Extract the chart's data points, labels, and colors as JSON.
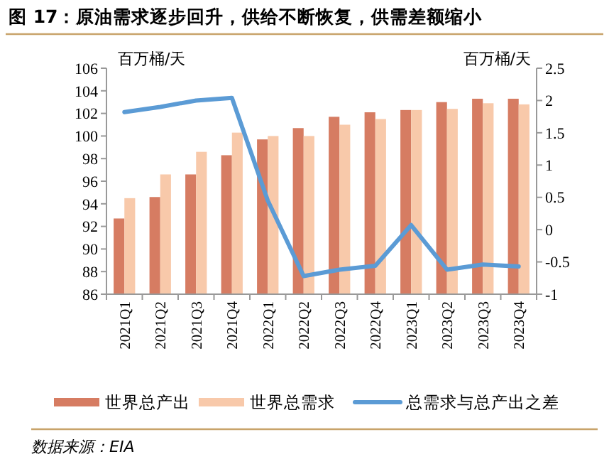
{
  "chart_data": {
    "type": "bar",
    "title": "图 17：原油需求逐步回升，供给不断恢复，供需差额缩小",
    "ylabel": "百万桶/天",
    "y2label": "百万桶/天",
    "categories": [
      "2021Q1",
      "2021Q2",
      "2021Q3",
      "2021Q4",
      "2022Q1",
      "2022Q2",
      "2022Q3",
      "2022Q4",
      "2023Q1",
      "2023Q2",
      "2023Q3",
      "2023Q4"
    ],
    "series": [
      {
        "name": "世界总产出",
        "color": "#d67c62",
        "values": [
          92.7,
          94.6,
          96.6,
          98.3,
          99.7,
          100.7,
          101.7,
          102.1,
          102.3,
          103.0,
          103.3,
          103.3
        ]
      },
      {
        "name": "世界总需求",
        "color": "#f8c9aa",
        "values": [
          94.5,
          96.6,
          98.6,
          100.3,
          100.0,
          100.0,
          101.0,
          101.5,
          102.3,
          102.4,
          102.9,
          102.8
        ]
      },
      {
        "name": "总需求与总产出之差",
        "type": "line",
        "axis": "y2",
        "color": "#5b9bd5",
        "values": [
          1.82,
          1.9,
          2.0,
          2.04,
          0.45,
          -0.72,
          -0.62,
          -0.56,
          0.07,
          -0.62,
          -0.54,
          -0.57
        ]
      }
    ],
    "ylim": [
      86,
      106
    ],
    "yticks": [
      86,
      88,
      90,
      92,
      94,
      96,
      98,
      100,
      102,
      104,
      106
    ],
    "y2lim": [
      -1,
      2.5
    ],
    "y2ticks": [
      -1,
      -0.5,
      0,
      0.5,
      1,
      1.5,
      2,
      2.5
    ],
    "legend": "bottom",
    "annotations": [
      "数据来源：EIA"
    ]
  }
}
